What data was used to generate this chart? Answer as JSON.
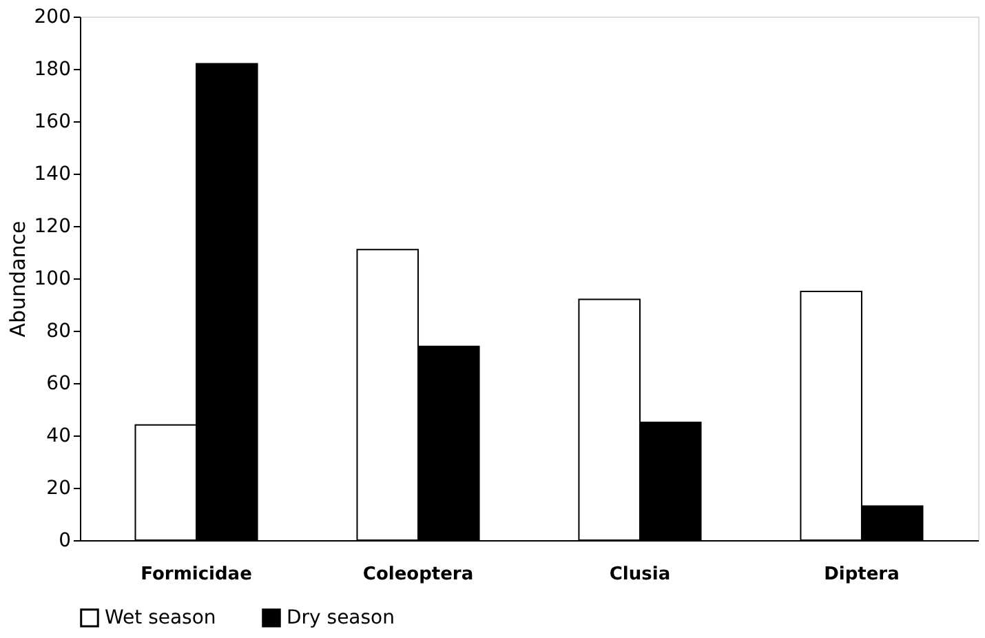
{
  "chart_data": {
    "type": "bar",
    "ylabel": "Abundance",
    "categories": [
      "Formicidae",
      "Coleoptera",
      "Clusia",
      "Diptera"
    ],
    "series": [
      {
        "name": "Wet season",
        "color": "#ffffff",
        "values": [
          44,
          111,
          92,
          95
        ]
      },
      {
        "name": "Dry season",
        "color": "#000000",
        "values": [
          182,
          74,
          45,
          13
        ]
      }
    ],
    "ylim": [
      0,
      200
    ],
    "yticks": [
      0,
      20,
      40,
      60,
      80,
      100,
      120,
      140,
      160,
      180,
      200
    ],
    "grid": false,
    "legend": "bottom"
  }
}
